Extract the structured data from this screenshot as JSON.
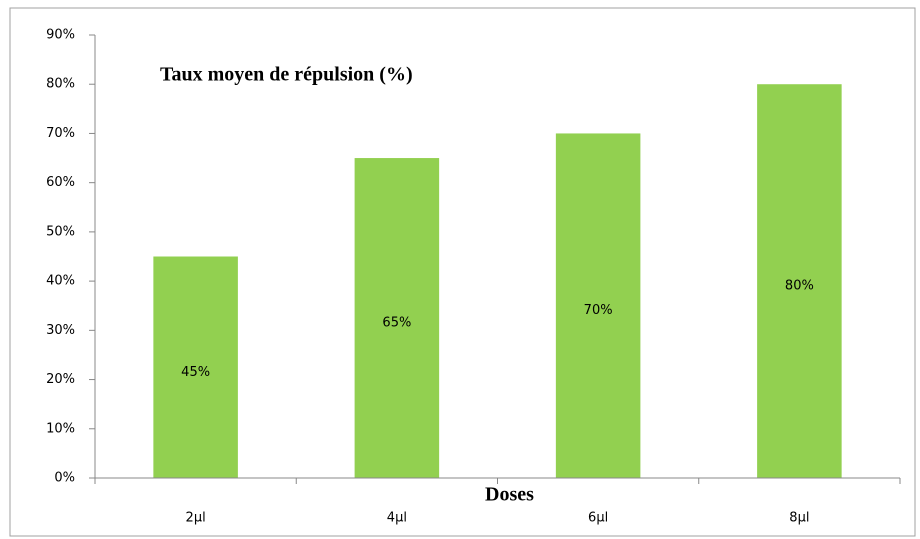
{
  "chart_data": {
    "type": "bar",
    "title": "Taux moyen de répulsion (%)",
    "x_label": "Doses",
    "categories": [
      "2µl",
      "4µl",
      "6µl",
      "8µl"
    ],
    "values": [
      45,
      65,
      70,
      80
    ],
    "value_labels": [
      "45%",
      "65%",
      "70%",
      "80%"
    ],
    "color": "#92d050",
    "ylim": [
      0,
      90
    ],
    "yticks": [
      {
        "value": 0,
        "label": "0%"
      },
      {
        "value": 10,
        "label": "10%"
      },
      {
        "value": 20,
        "label": "20%"
      },
      {
        "value": 30,
        "label": "30%"
      },
      {
        "value": 40,
        "label": "40%"
      },
      {
        "value": 50,
        "label": "50%"
      },
      {
        "value": 60,
        "label": "60%"
      },
      {
        "value": 70,
        "label": "70%"
      },
      {
        "value": 80,
        "label": "80%"
      },
      {
        "value": 90,
        "label": "90%"
      }
    ],
    "grid": false
  }
}
